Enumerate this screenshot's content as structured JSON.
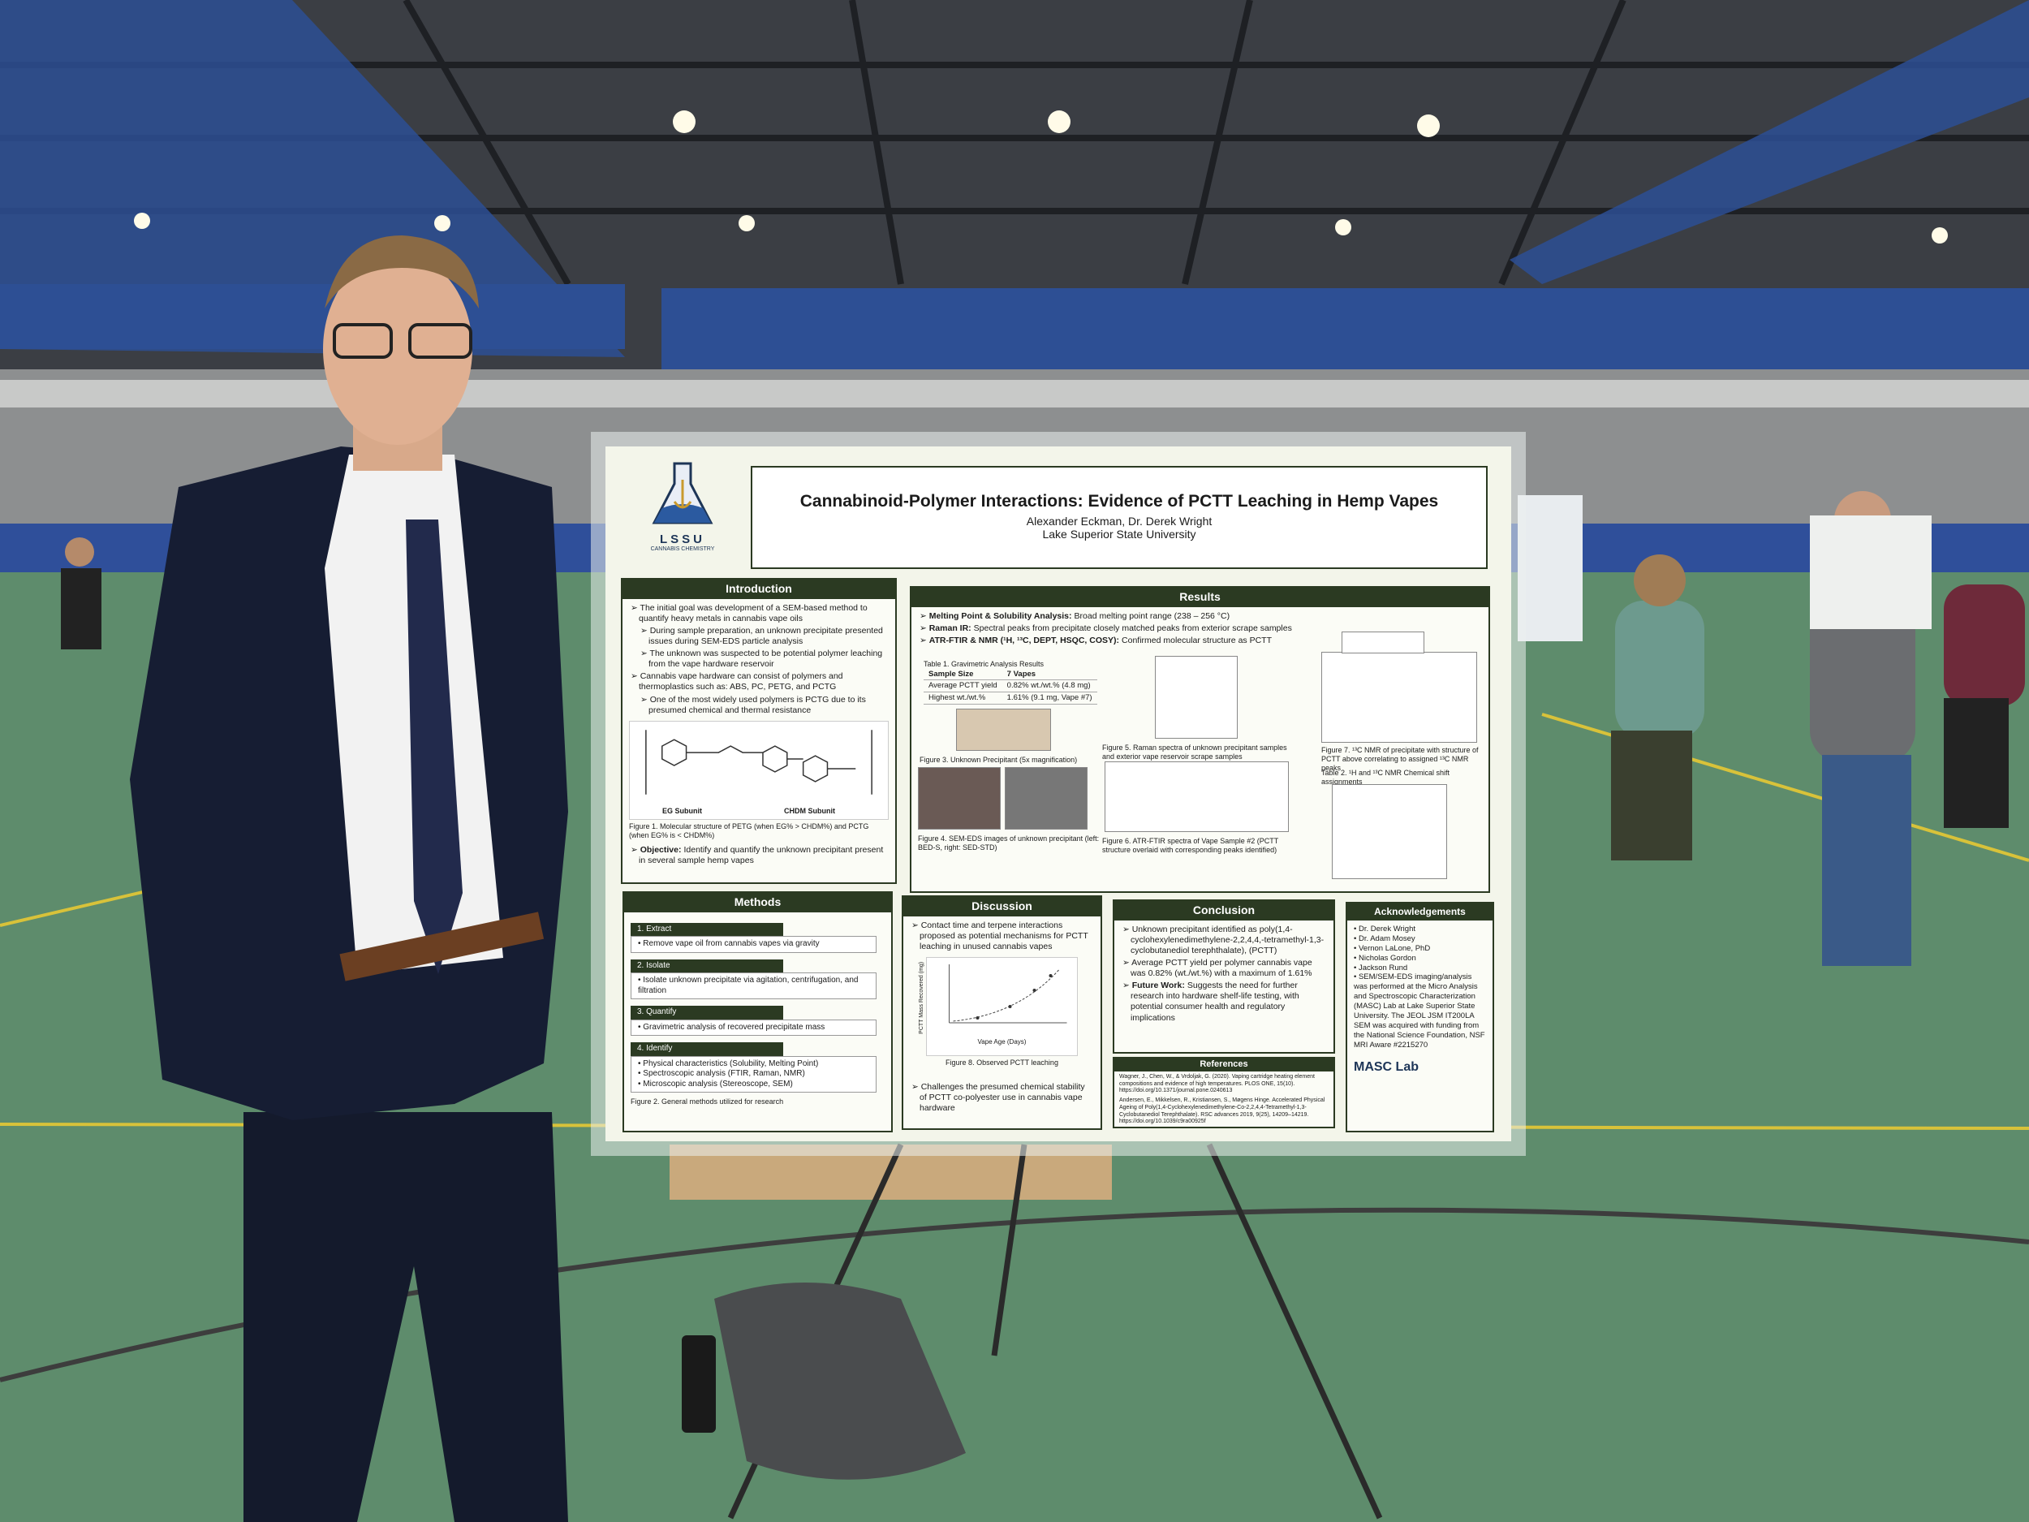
{
  "poster": {
    "logo": {
      "letters": "LSSU",
      "sub": "CANNABIS CHEMISTRY"
    },
    "title": "Cannabinoid-Polymer Interactions: Evidence of PCTT Leaching in Hemp Vapes",
    "authors": "Alexander Eckman, Dr. Derek Wright",
    "affiliation": "Lake Superior State University",
    "introduction": {
      "heading": "Introduction",
      "bullets": [
        {
          "text": "The initial goal was development of a SEM-based method to quantify heavy metals in cannabis vape oils",
          "sub": [
            "During sample preparation, an unknown precipitate presented issues during SEM-EDS particle analysis",
            "The unknown was suspected to be potential polymer leaching from the vape hardware reservoir"
          ]
        },
        {
          "text": "Cannabis vape hardware can consist of polymers and thermoplastics such as: ABS, PC, PETG, and PCTG",
          "sub": [
            "One of the most widely used polymers is PCTG due to its presumed chemical and thermal resistance"
          ]
        }
      ],
      "figure_labels": [
        "EG Subunit",
        "CHDM Subunit"
      ],
      "caption": "Figure 1. Molecular structure of PETG (when EG% > CHDM%) and PCTG (when EG% is < CHDM%)",
      "objective_label": "Objective:",
      "objective": "Identify and quantify the unknown precipitant present in several sample hemp vapes"
    },
    "results": {
      "heading": "Results",
      "bullets": [
        {
          "label": "Melting Point & Solubility Analysis:",
          "text": "Broad melting point range (238 – 256 °C)"
        },
        {
          "label": "Raman IR:",
          "text": "Spectral peaks from precipitate closely matched peaks from exterior scrape samples"
        },
        {
          "label": "ATR-FTIR & NMR (¹H, ¹³C, DEPT, HSQC, COSY):",
          "text": "Confirmed molecular structure as PCTT"
        }
      ],
      "table_caption": "Table 1. Gravimetric Analysis Results",
      "table": [
        [
          "Sample Size",
          "7 Vapes"
        ],
        [
          "Average PCTT yield",
          "0.82% wt./wt.% (4.8 mg)"
        ],
        [
          "Highest wt./wt.%",
          "1.61% (9.1 mg, Vape #7)"
        ]
      ],
      "figure3": "Figure 3. Unknown Precipitant (5x magnification)",
      "figure4": "Figure 4. SEM-EDS images of unknown precipitant (left: BED-S, right: SED-STD)",
      "figure5": "Figure 5. Raman spectra of unknown precipitant samples and exterior vape reservoir scrape samples",
      "figure6": "Figure 6. ATR-FTIR spectra of Vape Sample #2 (PCTT structure overlaid with corresponding peaks identified)",
      "figure7": "Figure 7. ¹³C NMR of precipitate with structure of PCTT above correlating to assigned ¹³C NMR peaks",
      "table2": "Table 2. ¹H and ¹³C NMR Chemical shift assignments"
    },
    "methods": {
      "heading": "Methods",
      "steps": [
        {
          "name": "1. Extract",
          "items": [
            "Remove vape oil from cannabis vapes via gravity"
          ]
        },
        {
          "name": "2. Isolate",
          "items": [
            "Isolate unknown precipitate via agitation, centrifugation, and filtration"
          ]
        },
        {
          "name": "3. Quantify",
          "items": [
            "Gravimetric analysis of recovered precipitate mass"
          ]
        },
        {
          "name": "4. Identify",
          "items": [
            "Physical characteristics (Solubility, Melting Point)",
            "Spectroscopic analysis (FTIR, Raman, NMR)",
            "Microscopic analysis (Stereoscope, SEM)"
          ]
        }
      ],
      "caption": "Figure 2. General methods utilized for research"
    },
    "discussion": {
      "heading": "Discussion",
      "bullets": [
        "Contact time and terpene interactions proposed as potential mechanisms for PCTT leaching in unused cannabis vapes"
      ],
      "x_label": "Vape Age (Days)",
      "y_label": "PCTT Mass Recovered (mg)",
      "caption": "Figure 8. Observed PCTT leaching",
      "closing": [
        "Challenges the presumed chemical stability of PCTT co-polyester use in cannabis vape hardware"
      ]
    },
    "conclusion": {
      "heading": "Conclusion",
      "bullets": [
        {
          "label": "",
          "text": "Unknown precipitant identified as poly(1,4-cyclohexylenedimethylene-2,2,4,4,-tetramethyl-1,3-cyclobutanediol terephthalate), (PCTT)"
        },
        {
          "label": "",
          "text": "Average PCTT yield per polymer cannabis vape was 0.82% (wt./wt.%) with a maximum of 1.61%"
        },
        {
          "label": "Future Work:",
          "text": "Suggests the need for further research into hardware shelf-life testing, with potential consumer health and regulatory implications"
        }
      ]
    },
    "references": {
      "heading": "References",
      "items": [
        "Wagner, J., Chen, W., & Vrdoljak, G. (2020). Vaping cartridge heating element compositions and evidence of high temperatures. PLOS ONE, 15(10). https://doi.org/10.1371/journal.pone.0240613",
        "Andersen, E., Mikkelsen, R., Kristiansen, S., Møgens Hinge. Accelerated Physical Ageing of Poly(1,4-Cyclohexylenedimethylene-Co-2,2,4,4-Tetramethyl-1,3-Cyclobutanediol Terephthalate). RSC advances 2019, 9(25), 14209–14219. https://doi.org/10.1039/c9ra00925f"
      ]
    },
    "acknowledgements": {
      "heading": "Acknowledgements",
      "items": [
        "Dr. Derek Wright",
        "Dr. Adam Mosey",
        "Vernon LaLone, PhD",
        "Nicholas Gordon",
        "Jackson Rund",
        "SEM/SEM-EDS imaging/analysis was performed at the Micro Analysis and Spectroscopic Characterization (MASC) Lab at Lake Superior State University. The JEOL JSM IT200LA SEM was acquired with funding from the National Science Foundation, NSF MRI Aware #2215270"
      ],
      "lab_logo": "MASC Lab"
    }
  }
}
